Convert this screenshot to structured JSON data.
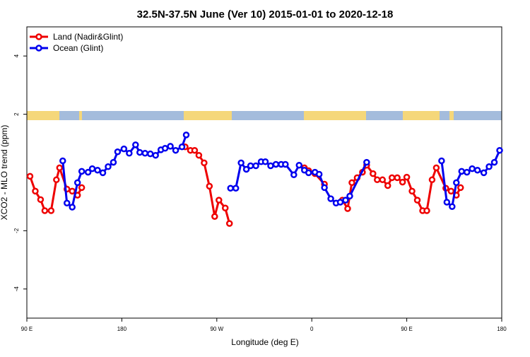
{
  "chart_data": {
    "type": "line",
    "title": "32.5N-37.5N June (Ver 10)   2015-01-01 to 2020-12-18",
    "x_label": "Longitude (deg E)",
    "y_label": "XCO2 - MLO trend (ppm)",
    "xlim": [
      90,
      540
    ],
    "ylim": [
      -5,
      5
    ],
    "xticks": [
      {
        "value": 90,
        "label": "90 E"
      },
      180,
      {
        "value": 270,
        "label": "90 W"
      },
      {
        "value": 360,
        "label": "0"
      },
      {
        "value": 450,
        "label": "90 E"
      },
      {
        "value": 540,
        "label": "180"
      }
    ],
    "yticks": [
      -4,
      -2,
      2,
      4
    ],
    "legend": "top-left",
    "series": [
      {
        "name": "Land (Nadir&Glint)",
        "color": "#ee0000",
        "x": [
          93,
          98,
          103,
          107,
          113,
          118,
          121,
          128,
          133,
          138,
          142,
          null,
          240,
          245,
          249,
          253,
          258,
          263,
          268,
          272,
          278,
          282,
          null,
          353,
          357,
          363,
          372,
          null,
          389,
          394,
          398,
          403,
          408,
          412,
          418,
          422,
          427,
          432,
          436,
          441,
          446,
          450,
          455,
          460,
          465,
          469,
          474,
          478,
          487,
          492,
          497,
          501
        ],
        "values": [
          -0.13,
          -0.64,
          -0.93,
          -1.31,
          -1.31,
          -0.25,
          0.16,
          -0.57,
          -0.64,
          -0.78,
          -0.52,
          null,
          0.88,
          0.76,
          0.76,
          0.59,
          0.33,
          -0.47,
          -1.51,
          -0.95,
          -1.22,
          -1.75,
          null,
          0.16,
          0.06,
          -0.04,
          -0.4,
          null,
          -0.95,
          -1.24,
          -0.35,
          -0.18,
          0.01,
          0.25,
          -0.04,
          -0.25,
          -0.25,
          -0.45,
          -0.18,
          -0.18,
          -0.33,
          -0.16,
          -0.64,
          -0.95,
          -1.31,
          -1.31,
          -0.25,
          0.16,
          -0.54,
          -0.64,
          -0.78,
          -0.52
        ]
      },
      {
        "name": "Ocean (Glint)",
        "color": "#0000ee",
        "x": [
          124,
          128,
          133,
          138,
          142,
          148,
          152,
          157,
          162,
          167,
          172,
          176,
          182,
          187,
          193,
          197,
          202,
          207,
          212,
          217,
          221,
          226,
          231,
          237,
          241,
          null,
          283,
          288,
          293,
          298,
          302,
          307,
          312,
          316,
          321,
          326,
          331,
          335,
          343,
          348,
          353,
          357,
          363,
          367,
          372,
          378,
          383,
          387,
          392,
          396,
          412,
          null,
          483,
          488,
          493,
          497,
          502,
          507,
          512,
          517,
          523,
          528,
          533,
          538
        ],
        "values": [
          0.4,
          -1.05,
          -1.19,
          -0.35,
          0.04,
          0.01,
          0.13,
          0.08,
          -0.01,
          0.2,
          0.35,
          0.71,
          0.81,
          0.66,
          0.95,
          0.69,
          0.66,
          0.64,
          0.59,
          0.78,
          0.83,
          0.9,
          0.76,
          0.88,
          1.29,
          null,
          -0.54,
          -0.54,
          0.33,
          0.11,
          0.23,
          0.23,
          0.37,
          0.37,
          0.23,
          0.28,
          0.28,
          0.28,
          -0.08,
          0.25,
          0.08,
          -0.01,
          0.01,
          -0.06,
          -0.52,
          -0.9,
          -1.05,
          -1.02,
          -0.95,
          -0.81,
          0.35,
          null,
          0.4,
          -1.02,
          -1.17,
          -0.35,
          0.04,
          0.01,
          0.13,
          0.08,
          -0.01,
          0.2,
          0.35,
          0.76
        ]
      }
    ]
  }
}
